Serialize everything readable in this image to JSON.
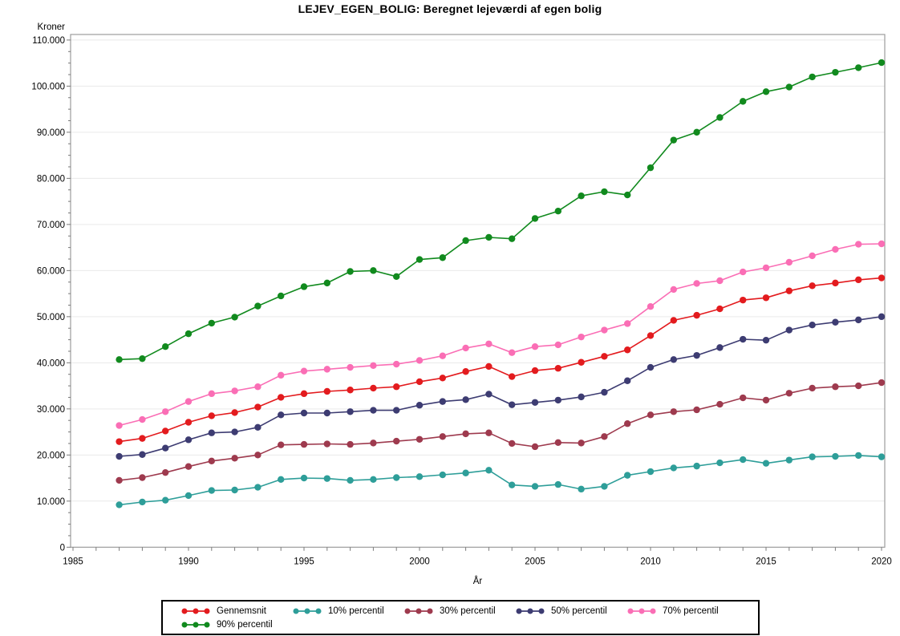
{
  "chart": {
    "title": "LEJEV_EGEN_BOLIG: Beregnet lejeværdi af egen bolig",
    "y_unit_label": "Kroner",
    "x_axis_title": "År"
  },
  "chart_data": {
    "type": "line",
    "title": "LEJEV_EGEN_BOLIG: Beregnet lejeværdi af egen bolig",
    "xlabel": "År",
    "ylabel": "Kroner",
    "xlim": [
      1985,
      2020
    ],
    "ylim": [
      0,
      110000
    ],
    "x_major_ticks": [
      1985,
      1990,
      1995,
      2000,
      2005,
      2010,
      2015,
      2020
    ],
    "x_minor_step": 1,
    "y_tick_step": 10000,
    "y_minor_step": 2500,
    "grid": "horizontal",
    "legend_position": "bottom",
    "x": [
      1987,
      1988,
      1989,
      1990,
      1991,
      1992,
      1993,
      1994,
      1995,
      1996,
      1997,
      1998,
      1999,
      2000,
      2001,
      2002,
      2003,
      2004,
      2005,
      2006,
      2007,
      2008,
      2009,
      2010,
      2011,
      2012,
      2013,
      2014,
      2015,
      2016,
      2017,
      2018,
      2019,
      2020
    ],
    "series": [
      {
        "name": "Gennemsnit",
        "color": "#e31b1e",
        "values": [
          22900,
          23600,
          25200,
          27100,
          28500,
          29200,
          30400,
          32500,
          33300,
          33800,
          34100,
          34500,
          34800,
          35900,
          36700,
          38100,
          39200,
          37000,
          38300,
          38800,
          40100,
          41400,
          42800,
          45900,
          49200,
          50300,
          51700,
          53600,
          54100,
          55600,
          56700,
          57300,
          58000,
          58400
        ]
      },
      {
        "name": "10% percentil",
        "color": "#2e9e99",
        "values": [
          9200,
          9800,
          10200,
          11200,
          12300,
          12400,
          13000,
          14700,
          15000,
          14900,
          14500,
          14700,
          15100,
          15300,
          15700,
          16100,
          16700,
          13500,
          13200,
          13600,
          12600,
          13200,
          15600,
          16400,
          17200,
          17600,
          18300,
          19000,
          18200,
          18900,
          19600,
          19700,
          19900,
          19600
        ]
      },
      {
        "name": "30% percentil",
        "color": "#9e3a4e",
        "values": [
          14500,
          15100,
          16200,
          17500,
          18700,
          19300,
          20000,
          22200,
          22300,
          22400,
          22300,
          22600,
          23000,
          23400,
          24000,
          24600,
          24800,
          22500,
          21800,
          22700,
          22600,
          24000,
          26800,
          28700,
          29400,
          29800,
          31000,
          32400,
          31900,
          33400,
          34500,
          34800,
          35000,
          35700
        ]
      },
      {
        "name": "50% percentil",
        "color": "#3d3c72",
        "values": [
          19700,
          20100,
          21500,
          23300,
          24800,
          25000,
          26000,
          28700,
          29100,
          29100,
          29400,
          29700,
          29700,
          30800,
          31600,
          32000,
          33200,
          30900,
          31400,
          31900,
          32600,
          33600,
          36100,
          39000,
          40700,
          41600,
          43300,
          45100,
          44900,
          47100,
          48200,
          48800,
          49300,
          50000
        ]
      },
      {
        "name": "70% percentil",
        "color": "#fa6eb5",
        "values": [
          26400,
          27700,
          29400,
          31600,
          33300,
          33900,
          34800,
          37300,
          38200,
          38600,
          39000,
          39400,
          39700,
          40500,
          41500,
          43200,
          44100,
          42200,
          43500,
          43900,
          45600,
          47100,
          48500,
          52200,
          55900,
          57200,
          57800,
          59700,
          60600,
          61800,
          63200,
          64600,
          65700,
          65800
        ]
      },
      {
        "name": "90% percentil",
        "color": "#118a1e",
        "values": [
          40700,
          40900,
          43500,
          46300,
          48600,
          49900,
          52300,
          54500,
          56500,
          57300,
          59800,
          60000,
          58700,
          62400,
          62800,
          66500,
          67200,
          66900,
          71300,
          72900,
          76200,
          77100,
          76400,
          82300,
          88300,
          90000,
          93200,
          96700,
          98800,
          99800,
          102000,
          103000,
          104000,
          105100
        ]
      }
    ],
    "style": {
      "frame_color": "#9c9c9c",
      "grid_color": "#e9e9e9",
      "tick_color": "#7a7a7a",
      "marker_radius": 4.2,
      "line_width": 1.6
    }
  }
}
